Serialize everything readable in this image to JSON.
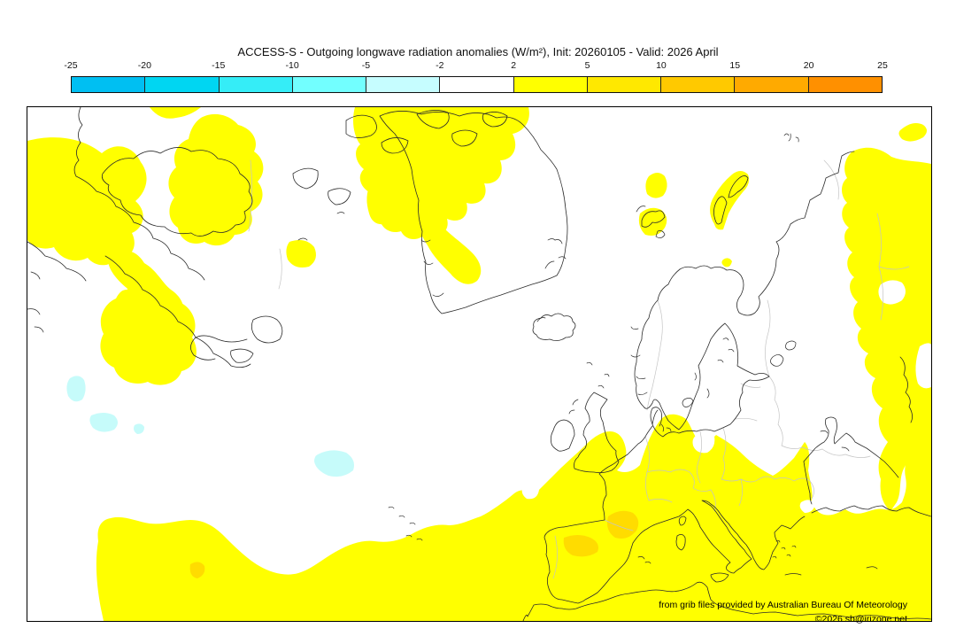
{
  "title": "ACCESS-S - Outgoing longwave radiation anomalies (W/m²), Init: 20260105 - Valid: 2026 April",
  "colorbar": {
    "units": "W/m²",
    "tick_labels": [
      "-25",
      "-20",
      "-15",
      "-10",
      "-5",
      "-2",
      "2",
      "5",
      "10",
      "15",
      "20",
      "25"
    ],
    "segments": [
      {
        "range": "-25 to -20",
        "color": "#00BFF2"
      },
      {
        "range": "-20 to -15",
        "color": "#00D6F2"
      },
      {
        "range": "-15 to -10",
        "color": "#35EDF7"
      },
      {
        "range": "-10 to -5",
        "color": "#72FFFF"
      },
      {
        "range": "-5 to -2",
        "color": "#C6FDFF"
      },
      {
        "range": "-2 to 2",
        "color": "#FFFFFF"
      },
      {
        "range": "2 to 5",
        "color": "#FFFF00"
      },
      {
        "range": "5 to 10",
        "color": "#FFE800"
      },
      {
        "range": "10 to 15",
        "color": "#FFC900"
      },
      {
        "range": "15 to 20",
        "color": "#FFAA00"
      },
      {
        "range": "20 to 25",
        "color": "#FF9000"
      }
    ]
  },
  "map": {
    "attribution_line1": "from grib files provided by Australian Bureau Of Meteorology",
    "attribution_line2": "©2026 sb@irizone.net",
    "palette": {
      "coastline": "#2b2b2b",
      "country_border": "#c4c4c4",
      "anomaly_pos_2_5": "#FFFF00",
      "anomaly_pos_5_10": "#FFDC00",
      "anomaly_neg_5_2": "#C6FBFA",
      "background": "#FFFFFF"
    }
  },
  "chart_data": {
    "type": "heatmap",
    "title": "ACCESS-S - Outgoing longwave radiation anomalies (W/m²), Init: 20260105 - Valid: 2026 April",
    "units": "W/m²",
    "scale_ticks": [
      -25,
      -20,
      -15,
      -10,
      -5,
      -2,
      2,
      5,
      10,
      15,
      20,
      25
    ],
    "legend_position": "top",
    "region": "North Atlantic, Greenland, Europe, North Africa, western Russia",
    "anomaly_regions": [
      {
        "value_range": "2 to 5",
        "areas": [
          "North Africa and Mediterranean Europe (Iberia, France, Italy, Balkans, Turkey)",
          "western Russia along right edge of map",
          "northeast Canada / Baffin Island patches",
          "east Greenland coastal band and Arctic archipelago",
          "Svalbard and Novaya Zemlya patches",
          "mid-Atlantic blob off Newfoundland",
          "top-left corner near Labrador"
        ]
      },
      {
        "value_range": "5 to 10",
        "areas": [
          "southern France / northern Spain patches",
          "small Atlantic patch off Morocco"
        ]
      },
      {
        "value_range": "-5 to -2",
        "areas": [
          "small mid-Atlantic patches",
          "patch northwest of the Canary Islands"
        ]
      },
      {
        "value_range": "-2 to 2",
        "areas": [
          "most of the North Atlantic, central Europe, Scandinavia, Black Sea region"
        ]
      }
    ]
  }
}
